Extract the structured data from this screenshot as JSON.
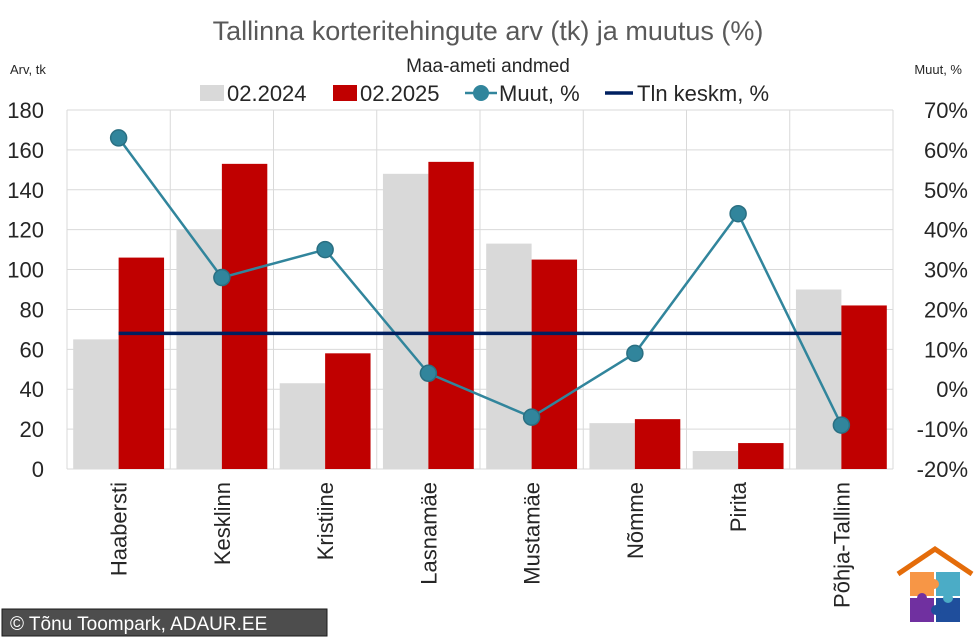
{
  "chart_data": {
    "type": "bar",
    "title": "Tallinna korteritehingute arv (tk) ja muutus (%)",
    "subtitle": "Maa-ameti andmed",
    "ylabel_left": "Arv, tk",
    "ylabel_right": "Muut, %",
    "categories": [
      "Haabersti",
      "Kesklinn",
      "Kristiine",
      "Lasnamäe",
      "Mustamäe",
      "Nõmme",
      "Pirita",
      "Põhja-Tallinn"
    ],
    "series": [
      {
        "name": "02.2024",
        "type": "bar",
        "axis": "left",
        "color": "#d9d9d9",
        "values": [
          65,
          120,
          43,
          148,
          113,
          23,
          9,
          90
        ]
      },
      {
        "name": "02.2025",
        "type": "bar",
        "axis": "left",
        "color": "#c00000",
        "values": [
          106,
          153,
          58,
          154,
          105,
          25,
          13,
          82
        ]
      },
      {
        "name": "Muut, %",
        "type": "line",
        "axis": "right",
        "color": "#31859c",
        "values": [
          63,
          28,
          35,
          4,
          -7,
          9,
          44,
          -9
        ]
      },
      {
        "name": "Tln keskm, %",
        "type": "line",
        "axis": "right",
        "color": "#002060",
        "values": [
          14,
          14,
          14,
          14,
          14,
          14,
          14,
          14
        ]
      }
    ],
    "ylim_left": [
      0,
      180
    ],
    "yticks_left": [
      0,
      20,
      40,
      60,
      80,
      100,
      120,
      140,
      160,
      180
    ],
    "ylim_right": [
      -20,
      70
    ],
    "yticks_right": [
      "-20%",
      "-10%",
      "0%",
      "10%",
      "20%",
      "30%",
      "40%",
      "50%",
      "60%",
      "70%"
    ],
    "legend_position": "top",
    "grid": true
  },
  "copyright": "© Tõnu Toompark, ADAUR.EE",
  "colors": {
    "grid": "#d9d9d9",
    "axis_text": "#262626",
    "logo_roof": "#e46c0a",
    "puzzle_orange": "#f79646",
    "puzzle_blue": "#1f4e9c",
    "puzzle_purple": "#7030a0",
    "puzzle_lightblue": "#4bacc6"
  }
}
